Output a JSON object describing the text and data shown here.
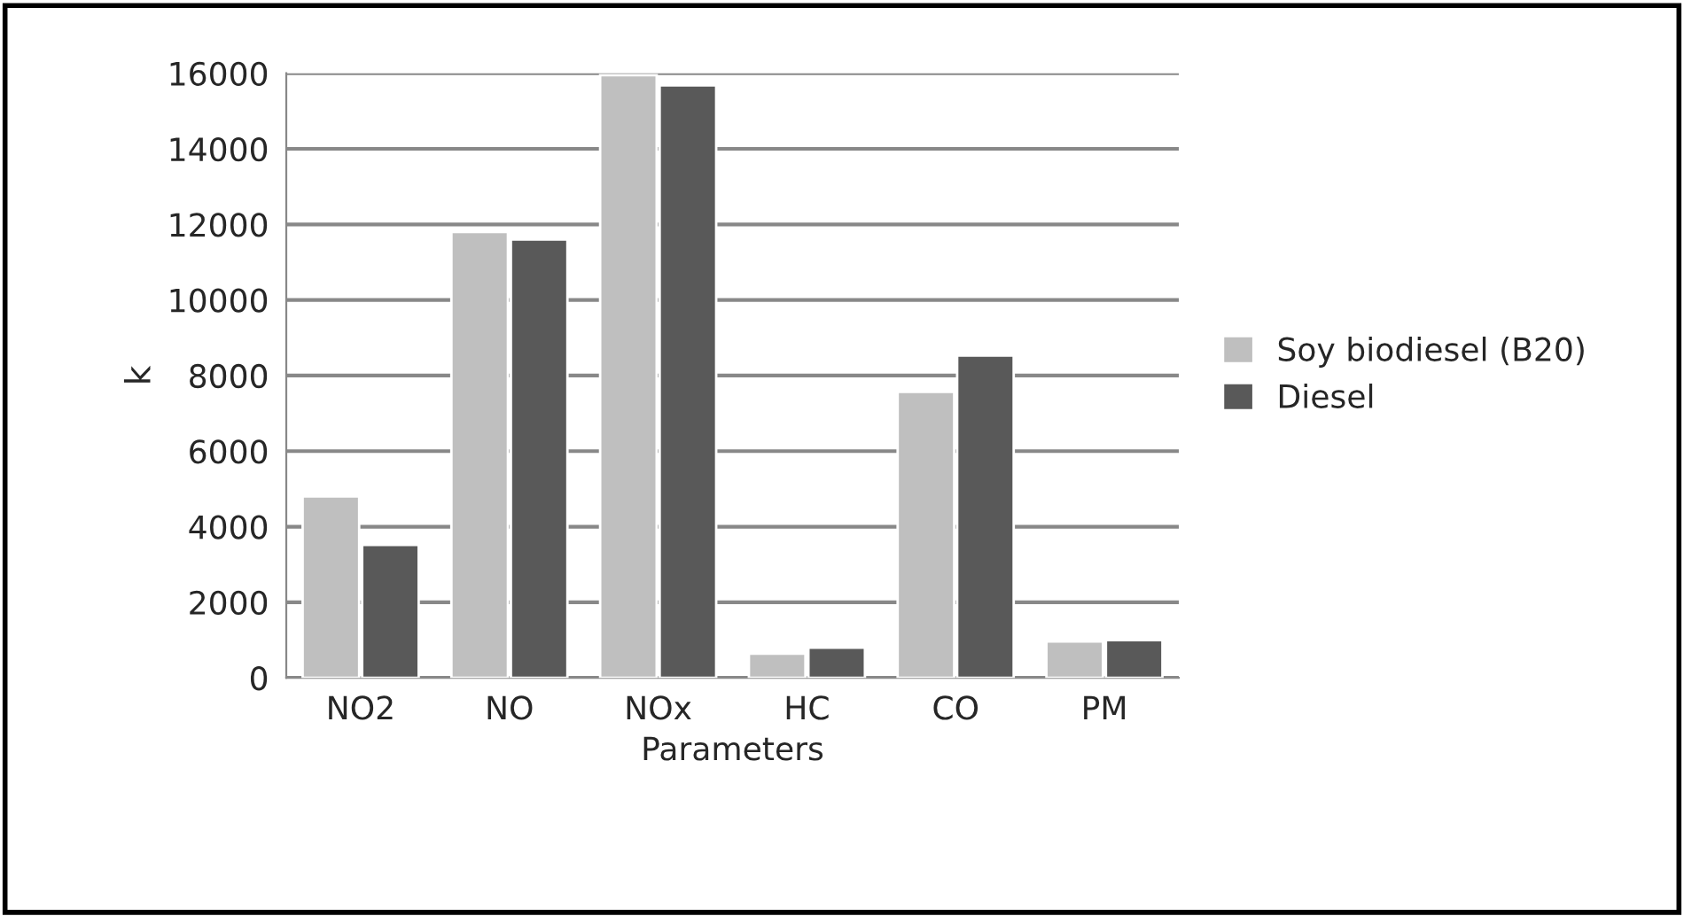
{
  "chart_data": {
    "type": "bar",
    "xlabel": "Parameters",
    "ylabel": "k",
    "categories": [
      "NO2",
      "NO",
      "NOx",
      "HC",
      "CO",
      "PM"
    ],
    "series": [
      {
        "name": "Soy biodiesel (B20)",
        "color": "#bfbfbf",
        "values": [
          4800,
          11800,
          15950,
          640,
          7570,
          960
        ]
      },
      {
        "name": "Diesel",
        "color": "#595959",
        "values": [
          3520,
          11600,
          15680,
          800,
          8530,
          1000
        ]
      }
    ],
    "ylim": [
      0,
      16000
    ],
    "yticks": [
      0,
      2000,
      4000,
      6000,
      8000,
      10000,
      12000,
      14000,
      16000
    ],
    "grid": "y",
    "legend": "right"
  }
}
